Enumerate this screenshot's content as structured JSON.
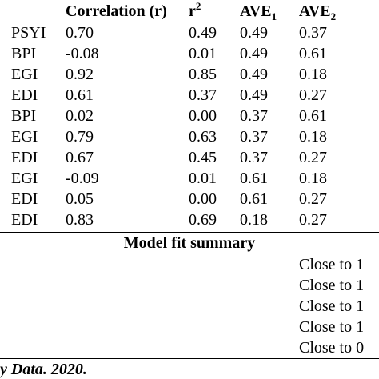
{
  "table": {
    "headers": {
      "correlation": "Correlation (r)",
      "r2_base": "r",
      "r2_sup": "2",
      "ave1_base": "AVE",
      "ave1_sub": "1",
      "ave2_base": "AVE",
      "ave2_sub": "2"
    },
    "rows": [
      {
        "label": "PSYI",
        "r": "0.70",
        "r2": "0.49",
        "ave1": "0.49",
        "ave2": "0.37"
      },
      {
        "label": "BPI",
        "r": "-0.08",
        "r2": "0.01",
        "ave1": "0.49",
        "ave2": "0.61"
      },
      {
        "label": "EGI",
        "r": "0.92",
        "r2": "0.85",
        "ave1": "0.49",
        "ave2": "0.18"
      },
      {
        "label": "EDI",
        "r": "0.61",
        "r2": "0.37",
        "ave1": "0.49",
        "ave2": "0.27"
      },
      {
        "label": "BPI",
        "r": "0.02",
        "r2": "0.00",
        "ave1": "0.37",
        "ave2": "0.61"
      },
      {
        "label": "EGI",
        "r": "0.79",
        "r2": "0.63",
        "ave1": "0.37",
        "ave2": "0.18"
      },
      {
        "label": "EDI",
        "r": "0.67",
        "r2": "0.45",
        "ave1": "0.37",
        "ave2": "0.27"
      },
      {
        "label": "EGI",
        "r": "-0.09",
        "r2": "0.01",
        "ave1": "0.61",
        "ave2": "0.18"
      },
      {
        "label": "EDI",
        "r": "0.05",
        "r2": "0.00",
        "ave1": "0.61",
        "ave2": "0.27"
      },
      {
        "label": "EDI",
        "r": "0.83",
        "r2": "0.69",
        "ave1": "0.18",
        "ave2": "0.27"
      }
    ]
  },
  "model_fit": {
    "title": "Model fit summary",
    "values": [
      "Close to 1",
      "Close to 1",
      "Close to 1",
      "Close to 1",
      "Close to 0"
    ]
  },
  "source_note": "y Data. 2020."
}
